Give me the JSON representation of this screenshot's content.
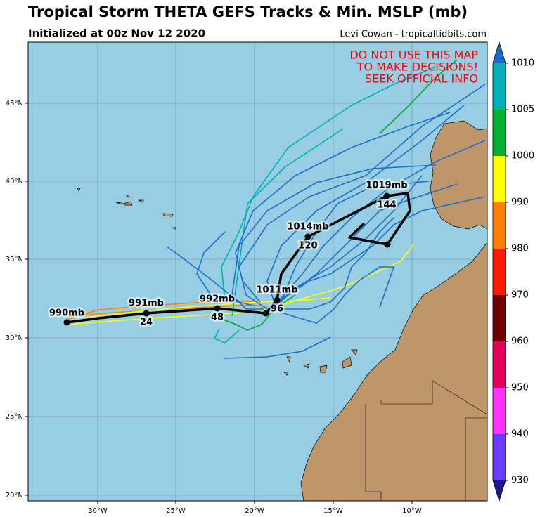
{
  "header": {
    "title": "Tropical Storm THETA GEFS Tracks & Min. MSLP (mb)",
    "subtitle": "Initialized at 00z Nov 12 2020",
    "credit": "Levi Cowan - tropicaltidbits.com"
  },
  "warning": [
    "DO NOT USE THIS MAP",
    "TO MAKE DECISIONS!",
    "SEEK OFFICIAL INFO"
  ],
  "lat_labels": [
    "45°N",
    "40°N",
    "35°N",
    "30°N",
    "25°N",
    "20°N"
  ],
  "lon_labels": [
    "30°W",
    "25°W",
    "20°W",
    "15°W",
    "10°W"
  ],
  "colorbar": {
    "labels": [
      "1010",
      "1005",
      "1000",
      "990",
      "980",
      "970",
      "960",
      "950",
      "940",
      "930"
    ]
  },
  "track_labels": {
    "pressures": [
      "990mb",
      "991mb",
      "992mb",
      "1011mb",
      "1014mb",
      "1019mb"
    ],
    "hours": [
      "24",
      "48",
      "96",
      "120",
      "144"
    ]
  }
}
